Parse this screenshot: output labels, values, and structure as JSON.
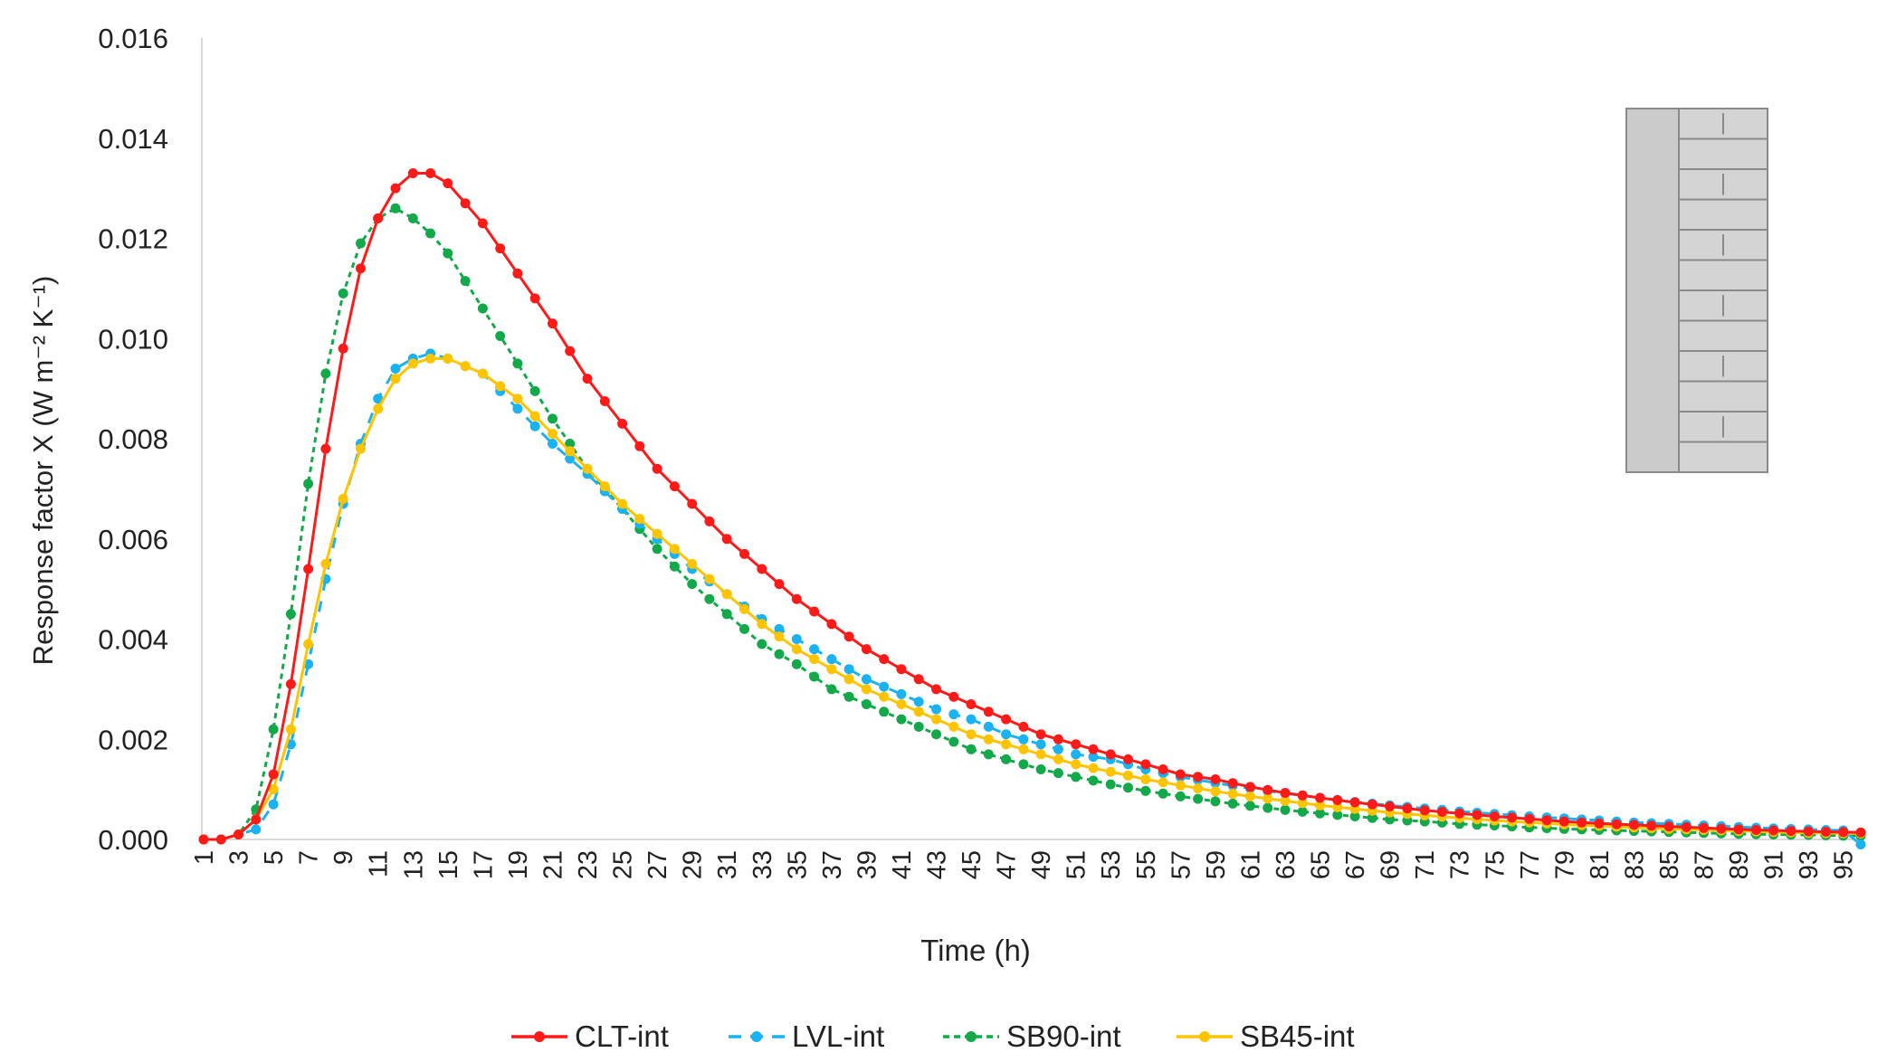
{
  "chart_data": {
    "type": "line",
    "title": "",
    "xlabel": "Time (h)",
    "ylabel": "Response factor X (W m⁻² K⁻¹)",
    "ylim": [
      0,
      0.016
    ],
    "yticks": [
      "0.000",
      "0.002",
      "0.004",
      "0.006",
      "0.008",
      "0.010",
      "0.012",
      "0.014",
      "0.016"
    ],
    "xlim": [
      1,
      96
    ],
    "xticks": [
      "1",
      "3",
      "5",
      "7",
      "9",
      "11",
      "13",
      "15",
      "17",
      "19",
      "21",
      "23",
      "25",
      "27",
      "29",
      "31",
      "33",
      "35",
      "37",
      "39",
      "41",
      "43",
      "45",
      "47",
      "49",
      "51",
      "53",
      "55",
      "57",
      "59",
      "61",
      "63",
      "65",
      "67",
      "69",
      "71",
      "73",
      "75",
      "77",
      "79",
      "81",
      "83",
      "85",
      "87",
      "89",
      "91",
      "93",
      "95"
    ],
    "grid": false,
    "legend_position": "bottom",
    "series": [
      {
        "name": "CLT-int",
        "color": "#ff1a1a",
        "dash": "solid",
        "points": [
          [
            1,
            0
          ],
          [
            2,
            0
          ],
          [
            3,
            0.0001
          ],
          [
            4,
            0.0004
          ],
          [
            5,
            0.0013
          ],
          [
            6,
            0.0031
          ],
          [
            7,
            0.0054
          ],
          [
            8,
            0.0078
          ],
          [
            9,
            0.0098
          ],
          [
            10,
            0.0114
          ],
          [
            11,
            0.0124
          ],
          [
            12,
            0.013
          ],
          [
            13,
            0.0133
          ],
          [
            14,
            0.0133
          ],
          [
            15,
            0.0131
          ],
          [
            17,
            0.0123
          ],
          [
            19,
            0.0113
          ],
          [
            21,
            0.0103
          ],
          [
            23,
            0.0092
          ],
          [
            25,
            0.0083
          ],
          [
            27,
            0.0074
          ],
          [
            29,
            0.0067
          ],
          [
            31,
            0.006
          ],
          [
            33,
            0.0054
          ],
          [
            35,
            0.0048
          ],
          [
            37,
            0.0043
          ],
          [
            39,
            0.0038
          ],
          [
            41,
            0.0034
          ],
          [
            43,
            0.003
          ],
          [
            45,
            0.0027
          ],
          [
            47,
            0.0024
          ],
          [
            49,
            0.0021
          ],
          [
            51,
            0.0019
          ],
          [
            53,
            0.0017
          ],
          [
            55,
            0.0015
          ],
          [
            57,
            0.0013
          ],
          [
            59,
            0.0012
          ],
          [
            61,
            0.00105
          ],
          [
            63,
            0.00093
          ],
          [
            65,
            0.00083
          ],
          [
            67,
            0.00074
          ],
          [
            69,
            0.00066
          ],
          [
            71,
            0.00058
          ],
          [
            73,
            0.00052
          ],
          [
            75,
            0.00046
          ],
          [
            77,
            0.00041
          ],
          [
            79,
            0.00036
          ],
          [
            81,
            0.00032
          ],
          [
            83,
            0.00029
          ],
          [
            85,
            0.00026
          ],
          [
            87,
            0.00023
          ],
          [
            89,
            0.0002
          ],
          [
            91,
            0.00018
          ],
          [
            93,
            0.00016
          ],
          [
            96,
            0.00014
          ]
        ]
      },
      {
        "name": "LVL-int",
        "color": "#1ab2f0",
        "dash": "12,12",
        "points": [
          [
            1,
            0
          ],
          [
            2,
            0
          ],
          [
            3,
            0.0001
          ],
          [
            4,
            0.0002
          ],
          [
            5,
            0.0007
          ],
          [
            6,
            0.0019
          ],
          [
            7,
            0.0035
          ],
          [
            8,
            0.0052
          ],
          [
            9,
            0.0067
          ],
          [
            10,
            0.0079
          ],
          [
            11,
            0.0088
          ],
          [
            12,
            0.0094
          ],
          [
            13,
            0.0096
          ],
          [
            14,
            0.0097
          ],
          [
            15,
            0.0096
          ],
          [
            17,
            0.0093
          ],
          [
            19,
            0.0086
          ],
          [
            21,
            0.0079
          ],
          [
            23,
            0.0073
          ],
          [
            25,
            0.0066
          ],
          [
            27,
            0.006
          ],
          [
            29,
            0.0054
          ],
          [
            31,
            0.0049
          ],
          [
            33,
            0.0044
          ],
          [
            35,
            0.004
          ],
          [
            37,
            0.0036
          ],
          [
            39,
            0.0032
          ],
          [
            41,
            0.0029
          ],
          [
            43,
            0.0026
          ],
          [
            45,
            0.0024
          ],
          [
            47,
            0.0021
          ],
          [
            49,
            0.0019
          ],
          [
            51,
            0.0017
          ],
          [
            53,
            0.0016
          ],
          [
            55,
            0.0014
          ],
          [
            57,
            0.00125
          ],
          [
            59,
            0.00113
          ],
          [
            61,
            0.00102
          ],
          [
            63,
            0.00092
          ],
          [
            65,
            0.00083
          ],
          [
            67,
            0.00075
          ],
          [
            69,
            0.00068
          ],
          [
            71,
            0.00062
          ],
          [
            73,
            0.00056
          ],
          [
            75,
            0.00051
          ],
          [
            77,
            0.00046
          ],
          [
            79,
            0.00042
          ],
          [
            81,
            0.00038
          ],
          [
            83,
            0.00034
          ],
          [
            85,
            0.00031
          ],
          [
            87,
            0.00028
          ],
          [
            89,
            0.00025
          ],
          [
            91,
            0.00022
          ],
          [
            93,
            0.0002
          ],
          [
            95,
            0.00018
          ],
          [
            96,
            -0.0001
          ]
        ]
      },
      {
        "name": "SB90-int",
        "color": "#13a84a",
        "dash": "6,5",
        "points": [
          [
            1,
            0
          ],
          [
            2,
            0
          ],
          [
            3,
            0.0001
          ],
          [
            4,
            0.0006
          ],
          [
            5,
            0.0022
          ],
          [
            6,
            0.0045
          ],
          [
            7,
            0.0071
          ],
          [
            8,
            0.0093
          ],
          [
            9,
            0.0109
          ],
          [
            10,
            0.0119
          ],
          [
            11,
            0.0124
          ],
          [
            12,
            0.0126
          ],
          [
            13,
            0.0124
          ],
          [
            14,
            0.0121
          ],
          [
            15,
            0.0117
          ],
          [
            17,
            0.0106
          ],
          [
            19,
            0.0095
          ],
          [
            21,
            0.0084
          ],
          [
            23,
            0.0074
          ],
          [
            25,
            0.0066
          ],
          [
            27,
            0.0058
          ],
          [
            29,
            0.0051
          ],
          [
            31,
            0.0045
          ],
          [
            33,
            0.0039
          ],
          [
            35,
            0.0035
          ],
          [
            37,
            0.003
          ],
          [
            39,
            0.0027
          ],
          [
            41,
            0.0024
          ],
          [
            43,
            0.0021
          ],
          [
            45,
            0.0018
          ],
          [
            47,
            0.0016
          ],
          [
            49,
            0.0014
          ],
          [
            51,
            0.00125
          ],
          [
            53,
            0.0011
          ],
          [
            55,
            0.00097
          ],
          [
            57,
            0.00086
          ],
          [
            59,
            0.00076
          ],
          [
            61,
            0.00067
          ],
          [
            63,
            0.00059
          ],
          [
            65,
            0.00052
          ],
          [
            67,
            0.00046
          ],
          [
            69,
            0.0004
          ],
          [
            71,
            0.00036
          ],
          [
            73,
            0.00031
          ],
          [
            75,
            0.00028
          ],
          [
            77,
            0.00024
          ],
          [
            79,
            0.00021
          ],
          [
            81,
            0.00019
          ],
          [
            83,
            0.00017
          ],
          [
            85,
            0.00015
          ],
          [
            87,
            0.00013
          ],
          [
            89,
            0.00011
          ],
          [
            91,
            0.0001
          ],
          [
            93,
            9e-05
          ],
          [
            96,
            7e-05
          ]
        ]
      },
      {
        "name": "SB45-int",
        "color": "#ffc400",
        "dash": "solid",
        "points": [
          [
            1,
            0
          ],
          [
            2,
            0
          ],
          [
            3,
            0.0001
          ],
          [
            4,
            0.0004
          ],
          [
            5,
            0.001
          ],
          [
            6,
            0.0022
          ],
          [
            7,
            0.0039
          ],
          [
            8,
            0.0055
          ],
          [
            9,
            0.0068
          ],
          [
            10,
            0.0078
          ],
          [
            11,
            0.0086
          ],
          [
            12,
            0.0092
          ],
          [
            13,
            0.0095
          ],
          [
            14,
            0.0096
          ],
          [
            15,
            0.0096
          ],
          [
            17,
            0.0093
          ],
          [
            19,
            0.0088
          ],
          [
            21,
            0.0081
          ],
          [
            23,
            0.0074
          ],
          [
            25,
            0.0067
          ],
          [
            27,
            0.0061
          ],
          [
            29,
            0.0055
          ],
          [
            31,
            0.0049
          ],
          [
            33,
            0.0043
          ],
          [
            35,
            0.0038
          ],
          [
            37,
            0.0034
          ],
          [
            39,
            0.003
          ],
          [
            41,
            0.0027
          ],
          [
            43,
            0.0024
          ],
          [
            45,
            0.0021
          ],
          [
            47,
            0.0019
          ],
          [
            49,
            0.0017
          ],
          [
            51,
            0.0015
          ],
          [
            53,
            0.00135
          ],
          [
            55,
            0.0012
          ],
          [
            57,
            0.00108
          ],
          [
            59,
            0.00096
          ],
          [
            61,
            0.00086
          ],
          [
            63,
            0.00077
          ],
          [
            65,
            0.00068
          ],
          [
            67,
            0.00061
          ],
          [
            69,
            0.00054
          ],
          [
            71,
            0.00048
          ],
          [
            73,
            0.00043
          ],
          [
            75,
            0.00038
          ],
          [
            77,
            0.00034
          ],
          [
            79,
            0.0003
          ],
          [
            81,
            0.00027
          ],
          [
            83,
            0.00024
          ],
          [
            85,
            0.00021
          ],
          [
            87,
            0.00019
          ],
          [
            89,
            0.00017
          ],
          [
            91,
            0.00015
          ],
          [
            93,
            0.00013
          ],
          [
            96,
            0.00012
          ]
        ]
      }
    ]
  }
}
